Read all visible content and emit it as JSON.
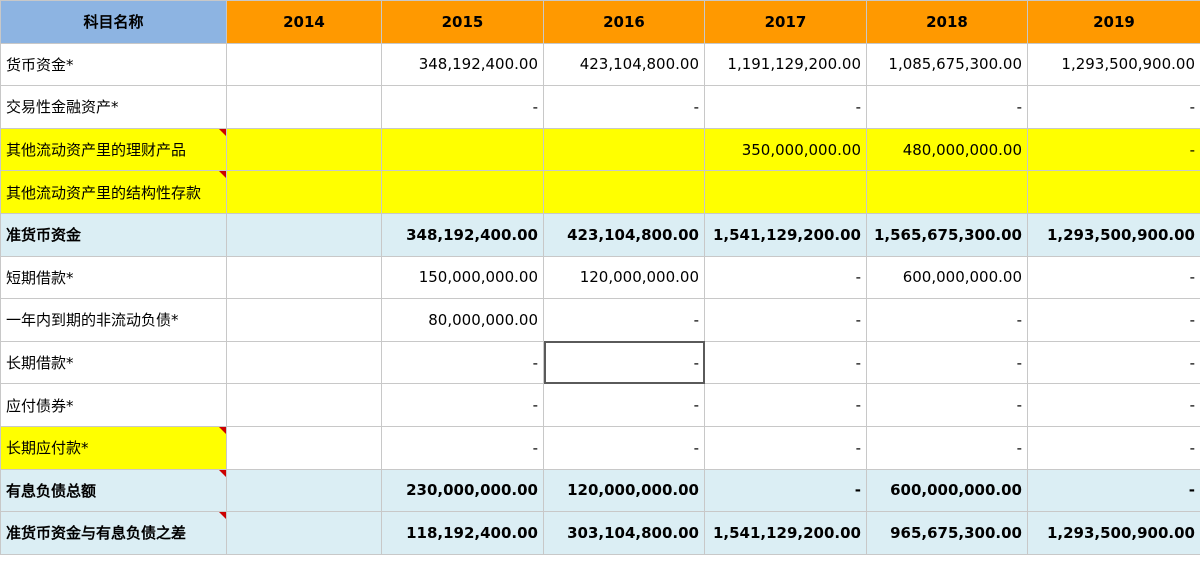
{
  "header": {
    "label": "科目名称",
    "years": [
      "2014",
      "2015",
      "2016",
      "2017",
      "2018",
      "2019"
    ]
  },
  "rows": [
    {
      "label": "货币资金*",
      "values": [
        "",
        "348,192,400.00",
        "423,104,800.00",
        "1,191,129,200.00",
        "1,085,675,300.00",
        "1,293,500,900.00"
      ]
    },
    {
      "label": "交易性金融资产*",
      "values": [
        "",
        "-",
        "-",
        "-",
        "-",
        "-"
      ]
    },
    {
      "label": "其他流动资产里的理财产品",
      "values": [
        "",
        "",
        "",
        "350,000,000.00",
        "480,000,000.00",
        "-"
      ]
    },
    {
      "label": "其他流动资产里的结构性存款",
      "values": [
        "",
        "",
        "",
        "",
        "",
        ""
      ]
    },
    {
      "label": "准货币资金",
      "values": [
        "",
        "348,192,400.00",
        "423,104,800.00",
        "1,541,129,200.00",
        "1,565,675,300.00",
        "1,293,500,900.00"
      ]
    },
    {
      "label": "短期借款*",
      "values": [
        "",
        "150,000,000.00",
        "120,000,000.00",
        "-",
        "600,000,000.00",
        "-"
      ]
    },
    {
      "label": "一年内到期的非流动负债*",
      "values": [
        "",
        "80,000,000.00",
        "-",
        "-",
        "-",
        "-"
      ]
    },
    {
      "label": "长期借款*",
      "values": [
        "",
        "-",
        "-",
        "-",
        "-",
        "-"
      ]
    },
    {
      "label": "应付债券*",
      "values": [
        "",
        "-",
        "-",
        "-",
        "-",
        "-"
      ]
    },
    {
      "label": "长期应付款*",
      "values": [
        "",
        "-",
        "-",
        "-",
        "-",
        "-"
      ]
    },
    {
      "label": "有息负债总额",
      "values": [
        "",
        "230,000,000.00",
        "120,000,000.00",
        "-",
        "600,000,000.00",
        "-"
      ]
    },
    {
      "label": "准货币资金与有息负债之差",
      "values": [
        "",
        "118,192,400.00",
        "303,104,800.00",
        "1,541,129,200.00",
        "965,675,300.00",
        "1,293,500,900.00"
      ]
    }
  ],
  "colors": {
    "header_label_bg": "#8db4e2",
    "header_year_bg": "#ff9900",
    "highlight_yellow": "#ffff00",
    "summary_row_bg": "#dbeef4",
    "comment_marker": "#cc0000"
  }
}
